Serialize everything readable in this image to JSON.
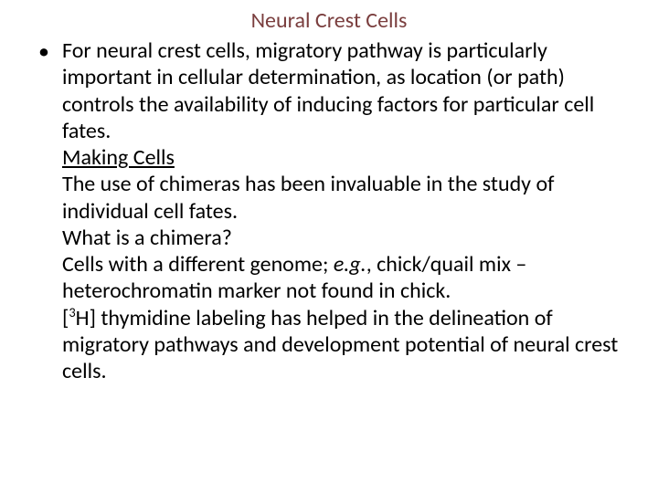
{
  "slide": {
    "title": "Neural Crest Cells",
    "title_color": "#7a3e3e",
    "body_color": "#000000",
    "background_color": "#ffffff",
    "font_family": "Calibri, 'Segoe UI', Arial, sans-serif",
    "title_fontsize": 24,
    "body_fontsize": 24,
    "bullet": {
      "marker": "•",
      "text": "For neural crest cells, migratory pathway is particularly important in cellular determination, as location (or path) controls the availability of inducing factors for particular cell fates."
    },
    "lines": {
      "making_cells": "Making Cells",
      "chimeras_use": "The use of chimeras has been invaluable in the study of individual cell fates.",
      "what_is": "What is a chimera?",
      "mix_pre": "Cells with a different genome; ",
      "mix_eg": "e.g.",
      "mix_post": ", chick/quail mix – heterochromatin marker not found in chick.",
      "thy_pre": "[",
      "thy_sup": "3",
      "thy_post": "H] thymidine labeling has helped in the delineation of migratory pathways and development potential of neural crest cells."
    }
  }
}
